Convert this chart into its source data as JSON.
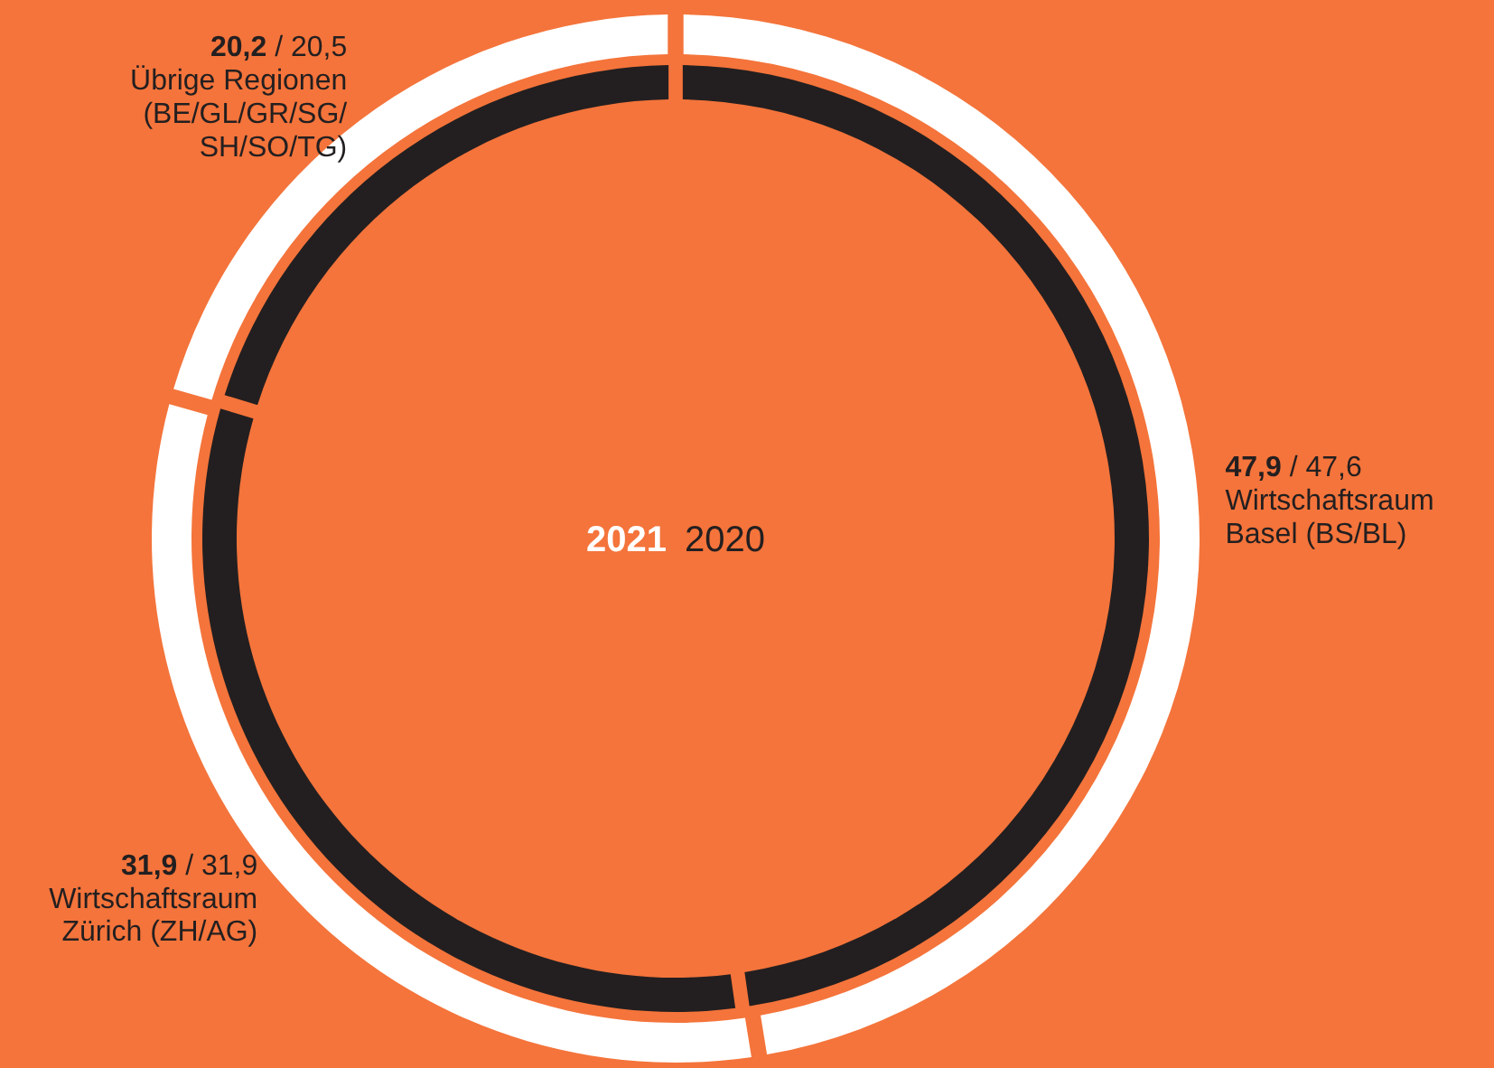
{
  "chart_data": {
    "type": "donut",
    "categories": [
      "Wirtschaftsraum\nBasel (BS/BL)",
      "Wirtschaftsraum\nZürich (ZH/AG)",
      "Übrige Regionen\n(BE/GL/GR/SG/\nSH/SO/TG)"
    ],
    "series": [
      {
        "name": "2021",
        "color": "#231f20",
        "values": [
          47.9,
          31.9,
          20.2
        ],
        "value_labels": [
          "47,9",
          "31,9",
          "20,2"
        ]
      },
      {
        "name": "2020",
        "color": "#ffffff",
        "values": [
          47.6,
          31.9,
          20.5
        ],
        "value_labels": [
          "47,6",
          "31,9",
          "20,5"
        ]
      }
    ],
    "annotations": [
      "/"
    ]
  }
}
